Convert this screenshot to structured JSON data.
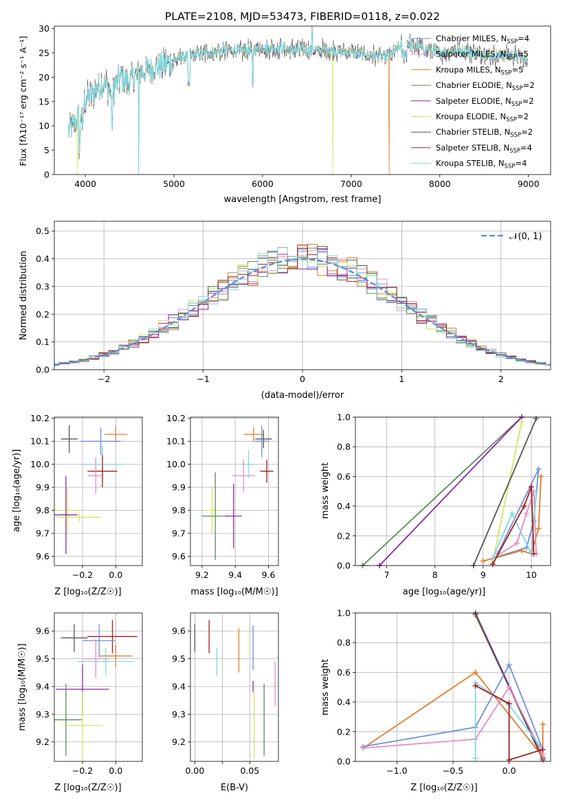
{
  "colors": {
    "chabrier_miles": "#6d8fd8",
    "salpeter_miles": "#e78ac3",
    "kroupa_miles": "#e07b28",
    "chabrier_elodie": "#5a8a5a",
    "salpeter_elodie": "#8e24aa",
    "kroupa_elodie": "#d4e657",
    "chabrier_stelib": "#555555",
    "salpeter_stelib": "#a51c1c",
    "kroupa_stelib": "#7fd8e0"
  },
  "chart_data": [
    {
      "id": "spectrum",
      "type": "line",
      "title": "PLATE=2108, MJD=53473, FIBERID=0118, z=0.022",
      "xlabel": "wavelength [Angstrom, rest frame]",
      "ylabel": "Flux [fλ10⁻¹⁷ erg cm⁻² s⁻¹ A⁻¹]",
      "xlim": [
        3650,
        9250
      ],
      "ylim": [
        0,
        30.5
      ],
      "xticks": [
        "4000",
        "5000",
        "6000",
        "7000",
        "8000",
        "9000"
      ],
      "yticks": [
        "0",
        "5",
        "10",
        "15",
        "20",
        "25",
        "30"
      ],
      "legend_position": "top-right",
      "legend": [
        {
          "label": "Chabrier MILES, N",
          "sub": "SSP",
          "tail": "=4",
          "color": "#6d8fd8"
        },
        {
          "label": "Salpeter MILES, N",
          "sub": "SSP",
          "tail": "=5",
          "color": "#e78ac3"
        },
        {
          "label": "Kroupa MILES, N",
          "sub": "SSP",
          "tail": "=5",
          "color": "#e07b28"
        },
        {
          "label": "Chabrier ELODIE, N",
          "sub": "SSP",
          "tail": "=2",
          "color": "#5a8a5a"
        },
        {
          "label": "Salpeter ELODIE, N",
          "sub": "SSP",
          "tail": "=2",
          "color": "#8e24aa"
        },
        {
          "label": "Kroupa ELODIE, N",
          "sub": "SSP",
          "tail": "=2",
          "color": "#d4e657"
        },
        {
          "label": "Chabrier STELIB, N",
          "sub": "SSP",
          "tail": "=2",
          "color": "#555555"
        },
        {
          "label": "Salpeter STELIB, N",
          "sub": "SSP",
          "tail": "=4",
          "color": "#a51c1c"
        },
        {
          "label": "Kroupa STELIB, N",
          "sub": "SSP",
          "tail": "=4",
          "color": "#7fd8e0"
        }
      ],
      "continuum": {
        "x": [
          3810,
          3900,
          4000,
          4100,
          4200,
          4300,
          4400,
          4500,
          4600,
          4800,
          5000,
          5200,
          5400,
          5600,
          5800,
          6000,
          6200,
          6400,
          6600,
          6800,
          7000,
          7200,
          7400,
          7600,
          7800,
          8000,
          8200,
          8400,
          8600,
          8800,
          9000
        ],
        "y": [
          9,
          11,
          15,
          17,
          19,
          17,
          20,
          19,
          21,
          22,
          23.5,
          24.5,
          25,
          25.5,
          25.5,
          26,
          26,
          25.5,
          25.5,
          25.5,
          25,
          24.5,
          24,
          27,
          26,
          25,
          25.5,
          25,
          24.5,
          24.5,
          23.5
        ]
      },
      "dropouts": [
        {
          "x": 3910,
          "series": "kroupa_elodie"
        },
        {
          "x": 4600,
          "series": "kroupa_stelib"
        },
        {
          "x": 6790,
          "series": "kroupa_elodie"
        },
        {
          "x": 7430,
          "series": "kroupa_miles"
        }
      ]
    },
    {
      "id": "residuals",
      "type": "line",
      "xlabel": "(data-model)/error",
      "ylabel": "Normed distribution",
      "xlim": [
        -2.5,
        2.5
      ],
      "ylim": [
        0,
        0.535
      ],
      "xticks": [
        "−2",
        "−1",
        "0",
        "1",
        "2"
      ],
      "yticks": [
        "0.0",
        "0.1",
        "0.2",
        "0.3",
        "0.4",
        "0.5"
      ],
      "grid": true,
      "legend_position": "top-right",
      "legend": [
        {
          "label": "𝒩(0, 1)",
          "color": "#5b8fd6",
          "style": "dashed"
        }
      ],
      "gaussian": {
        "mean": 0,
        "sigma": 1
      }
    },
    {
      "id": "age_vs_Z",
      "type": "errorbar",
      "xlabel": "Z [log₁₀(Z/Z☉)]",
      "ylabel": "age  [log₁₀(age/yr)]",
      "xlim": [
        -0.37,
        0.16
      ],
      "ylim": [
        9.56,
        10.205
      ],
      "xticks": [
        {
          "v": -0.2,
          "t": "−0.2"
        },
        {
          "v": 0.0,
          "t": "0.0"
        }
      ],
      "yticks": [
        {
          "v": 9.6,
          "t": "9.6"
        },
        {
          "v": 9.7,
          "t": "9.7"
        },
        {
          "v": 9.8,
          "t": "9.8"
        },
        {
          "v": 9.9,
          "t": "9.9"
        },
        {
          "v": 10.0,
          "t": "10.0"
        },
        {
          "v": 10.1,
          "t": "10.1"
        },
        {
          "v": 10.2,
          "t": "10.2"
        }
      ],
      "grid": true,
      "points": [
        {
          "c": "chabrier_stelib",
          "x": -0.28,
          "xe": 0.05,
          "y": 10.11,
          "ye": 0.06
        },
        {
          "c": "kroupa_miles",
          "x": 0.0,
          "xe": 0.07,
          "y": 10.13,
          "ye": 0.035
        },
        {
          "c": "chabrier_miles",
          "x": -0.09,
          "xe": 0.12,
          "y": 10.1,
          "ye": 0.06
        },
        {
          "c": "kroupa_stelib",
          "x": -0.08,
          "xe": 0.12,
          "y": 10.0,
          "ye": 0.08
        },
        {
          "c": "salpeter_stelib",
          "x": -0.08,
          "xe": 0.09,
          "y": 9.97,
          "ye": 0.07
        },
        {
          "c": "salpeter_miles",
          "x": -0.12,
          "xe": 0.05,
          "y": 9.95,
          "ye": 0.08
        },
        {
          "c": "kroupa_elodie",
          "x": -0.29,
          "xe": 0.08,
          "y": 9.8,
          "ye": 0.1
        },
        {
          "c": "salpeter_elodie",
          "x": -0.3,
          "xe": 0.07,
          "y": 9.78,
          "ye": 0.17
        },
        {
          "c": "kroupa_elodie",
          "x": -0.22,
          "xe": 0.13,
          "y": 9.77,
          "ye": 0.02
        }
      ]
    },
    {
      "id": "age_vs_mass",
      "type": "errorbar",
      "xlabel": "mass [log₁₀(M/M☉)]",
      "xlim": [
        9.13,
        9.66
      ],
      "ylim": [
        9.56,
        10.205
      ],
      "xticks": [
        {
          "v": 9.2,
          "t": "9.2"
        },
        {
          "v": 9.4,
          "t": "9.4"
        },
        {
          "v": 9.6,
          "t": "9.6"
        }
      ],
      "yticks": [
        {
          "v": 9.6,
          "t": "9.6"
        },
        {
          "v": 9.7,
          "t": "9.7"
        },
        {
          "v": 9.8,
          "t": "9.8"
        },
        {
          "v": 9.9,
          "t": "9.9"
        },
        {
          "v": 10.0,
          "t": "10.0"
        },
        {
          "v": 10.1,
          "t": "10.1"
        },
        {
          "v": 10.2,
          "t": "10.2"
        }
      ],
      "grid": true,
      "points": [
        {
          "c": "kroupa_miles",
          "x": 9.51,
          "xe": 0.06,
          "y": 10.13,
          "ye": 0.03
        },
        {
          "c": "chabrier_stelib",
          "x": 9.57,
          "xe": 0.05,
          "y": 10.11,
          "ye": 0.04
        },
        {
          "c": "chabrier_miles",
          "x": 9.56,
          "xe": 0.04,
          "y": 10.1,
          "ye": 0.07
        },
        {
          "c": "kroupa_stelib",
          "x": 9.48,
          "xe": 0.04,
          "y": 10.0,
          "ye": 0.06
        },
        {
          "c": "salpeter_stelib",
          "x": 9.59,
          "xe": 0.04,
          "y": 9.97,
          "ye": 0.05
        },
        {
          "c": "salpeter_miles",
          "x": 9.45,
          "xe": 0.07,
          "y": 9.95,
          "ye": 0.07
        },
        {
          "c": "kroupa_elodie",
          "x": 9.26,
          "xe": 0.05,
          "y": 9.8,
          "ye": 0.1
        },
        {
          "c": "chabrier_elodie",
          "x": 9.28,
          "xe": 0.08,
          "y": 9.775,
          "ye": 0.19
        },
        {
          "c": "salpeter_elodie",
          "x": 9.39,
          "xe": 0.05,
          "y": 9.775,
          "ye": 0.14
        }
      ]
    },
    {
      "id": "mw_vs_age",
      "type": "line",
      "xlabel": "age  [log₁₀(age/yr)]",
      "ylabel": "mass weight",
      "xlim": [
        6.35,
        10.4
      ],
      "ylim": [
        0,
        1.0
      ],
      "xticks": [
        {
          "v": 7,
          "t": "7"
        },
        {
          "v": 8,
          "t": "8"
        },
        {
          "v": 9,
          "t": "9"
        },
        {
          "v": 10,
          "t": "10"
        }
      ],
      "yticks": [
        {
          "v": 0.0,
          "t": "0.0"
        },
        {
          "v": 0.2,
          "t": "0.2"
        },
        {
          "v": 0.4,
          "t": "0.4"
        },
        {
          "v": 0.6,
          "t": "0.6"
        },
        {
          "v": 0.8,
          "t": "0.8"
        },
        {
          "v": 1.0,
          "t": "1.0"
        }
      ],
      "grid": true,
      "series": [
        {
          "c": "chabrier_elodie",
          "x": [
            6.5,
            9.8
          ],
          "y": [
            0.0,
            1.0
          ]
        },
        {
          "c": "salpeter_elodie",
          "x": [
            6.85,
            9.8
          ],
          "y": [
            0.0,
            1.0
          ]
        },
        {
          "c": "kroupa_elodie",
          "x": [
            9.2,
            9.8
          ],
          "y": [
            0.03,
            0.97
          ]
        },
        {
          "c": "chabrier_stelib",
          "x": [
            8.8,
            10.1
          ],
          "y": [
            0.0,
            0.99
          ]
        },
        {
          "c": "chabrier_miles",
          "x": [
            9.2,
            9.9,
            10.05,
            10.15,
            9.3
          ],
          "y": [
            0.05,
            0.12,
            0.3,
            0.65,
            0.08
          ]
        },
        {
          "c": "kroupa_miles",
          "x": [
            9.0,
            9.8,
            10.0,
            10.15,
            10.2
          ],
          "y": [
            0.03,
            0.1,
            0.08,
            0.25,
            0.6
          ]
        },
        {
          "c": "salpeter_miles",
          "x": [
            9.2,
            9.7,
            9.9,
            10.05,
            10.1
          ],
          "y": [
            0.05,
            0.15,
            0.35,
            0.5,
            0.08
          ]
        },
        {
          "c": "kroupa_stelib",
          "x": [
            9.2,
            9.6,
            10.0,
            10.1
          ],
          "y": [
            0.05,
            0.35,
            0.08,
            0.5
          ]
        },
        {
          "c": "salpeter_stelib",
          "x": [
            9.2,
            9.85,
            10.0,
            10.05
          ],
          "y": [
            0.01,
            0.4,
            0.53,
            0.08
          ]
        }
      ]
    },
    {
      "id": "mass_vs_Z",
      "type": "errorbar",
      "xlabel": "Z [log₁₀(Z/Z☉)]",
      "ylabel": "mass [log₁₀(M/M☉)]",
      "xlim": [
        -0.37,
        0.16
      ],
      "ylim": [
        9.13,
        9.665
      ],
      "xticks": [
        {
          "v": -0.2,
          "t": "−0.2"
        },
        {
          "v": 0.0,
          "t": "0.0"
        }
      ],
      "yticks": [
        {
          "v": 9.2,
          "t": "9.2"
        },
        {
          "v": 9.3,
          "t": "9.3"
        },
        {
          "v": 9.4,
          "t": "9.4"
        },
        {
          "v": 9.5,
          "t": "9.5"
        },
        {
          "v": 9.6,
          "t": "9.6"
        }
      ],
      "grid": true,
      "points": [
        {
          "c": "salpeter_stelib",
          "x": -0.02,
          "xe": 0.15,
          "y": 9.58,
          "ye": 0.06
        },
        {
          "c": "chabrier_stelib",
          "x": -0.25,
          "xe": 0.08,
          "y": 9.575,
          "ye": 0.05
        },
        {
          "c": "chabrier_miles",
          "x": -0.1,
          "xe": 0.1,
          "y": 9.565,
          "ye": 0.06
        },
        {
          "c": "kroupa_miles",
          "x": 0.0,
          "xe": 0.1,
          "y": 9.51,
          "ye": 0.04
        },
        {
          "c": "salpeter_miles",
          "x": -0.12,
          "xe": 0.08,
          "y": 9.5,
          "ye": 0.07
        },
        {
          "c": "kroupa_stelib",
          "x": -0.06,
          "xe": 0.17,
          "y": 9.49,
          "ye": 0.05
        },
        {
          "c": "salpeter_elodie",
          "x": -0.2,
          "xe": 0.16,
          "y": 9.39,
          "ye": 0.09
        },
        {
          "c": "chabrier_elodie",
          "x": -0.3,
          "xe": 0.1,
          "y": 9.28,
          "ye": 0.13
        },
        {
          "c": "kroupa_elodie",
          "x": -0.2,
          "xe": 0.12,
          "y": 9.26,
          "ye": 0.12
        }
      ]
    },
    {
      "id": "mass_vs_ebv",
      "type": "errorbar",
      "xlabel": "E(B-V)",
      "xlim": [
        -0.004,
        0.076
      ],
      "ylim": [
        9.13,
        9.665
      ],
      "xticks": [
        {
          "v": 0.0,
          "t": "0.00"
        },
        {
          "v": 0.025,
          "t": "0.025"
        },
        {
          "v": 0.05,
          "t": "0.05"
        }
      ],
      "xtick_labels_shown": [
        "0.00",
        "0.05"
      ],
      "yticks": [
        {
          "v": 9.2,
          "t": "9.2"
        },
        {
          "v": 9.3,
          "t": "9.3"
        },
        {
          "v": 9.4,
          "t": "9.4"
        },
        {
          "v": 9.5,
          "t": "9.5"
        },
        {
          "v": 9.6,
          "t": "9.6"
        }
      ],
      "grid": true,
      "points": [
        {
          "c": "chabrier_stelib",
          "x": 0.0,
          "xe": 0,
          "y": 9.575,
          "ye": 0.05
        },
        {
          "c": "salpeter_stelib",
          "x": 0.013,
          "xe": 0,
          "y": 9.58,
          "ye": 0.06
        },
        {
          "c": "kroupa_stelib",
          "x": 0.02,
          "xe": 0,
          "y": 9.49,
          "ye": 0.05
        },
        {
          "c": "kroupa_miles",
          "x": 0.04,
          "xe": 0,
          "y": 9.53,
          "ye": 0.08
        },
        {
          "c": "chabrier_miles",
          "x": 0.053,
          "xe": 0,
          "y": 9.54,
          "ye": 0.08
        },
        {
          "c": "salpeter_elodie",
          "x": 0.053,
          "xe": 0,
          "y": 9.4,
          "ye": 0.02
        },
        {
          "c": "kroupa_elodie",
          "x": 0.054,
          "xe": 0,
          "y": 9.26,
          "ye": 0.12
        },
        {
          "c": "chabrier_elodie",
          "x": 0.063,
          "xe": 0,
          "y": 9.28,
          "ye": 0.13
        },
        {
          "c": "salpeter_miles",
          "x": 0.073,
          "xe": 0,
          "y": 9.41,
          "ye": 0.08
        }
      ]
    },
    {
      "id": "mw_vs_Z",
      "type": "line",
      "xlabel": "Z [log₁₀(Z/Z☉)]",
      "ylabel": "mass weight",
      "xlim": [
        -1.37,
        0.37
      ],
      "ylim": [
        0,
        1.0
      ],
      "xticks": [
        {
          "v": -1.0,
          "t": "−1.0"
        },
        {
          "v": -0.5,
          "t": "−0.5"
        },
        {
          "v": 0.0,
          "t": "0.0"
        }
      ],
      "yticks": [
        {
          "v": 0.0,
          "t": "0.0"
        },
        {
          "v": 0.2,
          "t": "0.2"
        },
        {
          "v": 0.4,
          "t": "0.4"
        },
        {
          "v": 0.6,
          "t": "0.6"
        },
        {
          "v": 0.8,
          "t": "0.8"
        },
        {
          "v": 1.0,
          "t": "1.0"
        }
      ],
      "grid": true,
      "series": [
        {
          "c": "kroupa_elodie",
          "x": [
            -0.3,
            0.3
          ],
          "y": [
            0.98,
            0.03
          ]
        },
        {
          "c": "salpeter_elodie",
          "x": [
            -0.3,
            0.3
          ],
          "y": [
            1.0,
            0.02
          ]
        },
        {
          "c": "chabrier_stelib",
          "x": [
            -0.3,
            0.3
          ],
          "y": [
            0.99,
            0.01
          ]
        },
        {
          "c": "kroupa_miles",
          "x": [
            -1.3,
            -0.3,
            0.3,
            0.3
          ],
          "y": [
            0.09,
            0.6,
            0.03,
            0.25
          ]
        },
        {
          "c": "chabrier_miles",
          "x": [
            -1.3,
            -0.3,
            0.0,
            0.3
          ],
          "y": [
            0.1,
            0.23,
            0.65,
            0.08
          ]
        },
        {
          "c": "salpeter_miles",
          "x": [
            -1.3,
            -0.3,
            0.0,
            0.3
          ],
          "y": [
            0.09,
            0.15,
            0.5,
            0.05
          ]
        },
        {
          "c": "kroupa_stelib",
          "x": [
            -0.3,
            -0.3,
            0.0,
            0.3
          ],
          "y": [
            0.02,
            0.53,
            0.38,
            0.08
          ]
        },
        {
          "c": "salpeter_stelib",
          "x": [
            -0.3,
            0.0,
            0.0,
            0.3
          ],
          "y": [
            0.51,
            0.39,
            0.01,
            0.08
          ]
        }
      ]
    }
  ]
}
